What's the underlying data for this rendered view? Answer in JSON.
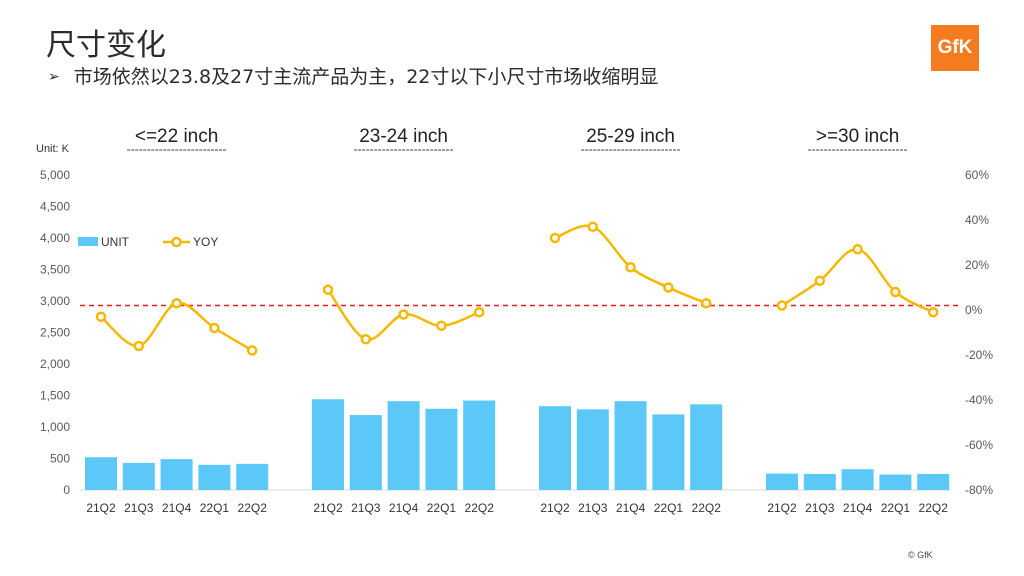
{
  "slide": {
    "title": "尺寸变化",
    "bullet_symbol": "➢",
    "subtitle": "市场依然以23.8及27寸主流产品为主，22寸以下小尺寸市场收缩明显",
    "logo_text": "GfK",
    "copyright": "© GfK"
  },
  "colors": {
    "bar": "#5bc8f8",
    "line": "#f5b800",
    "reference_line": "#e02020",
    "logo": "#f47b20"
  },
  "chart_data": {
    "type": "bar",
    "unit_label": "Unit: K",
    "group_divider": "-------------------------",
    "groups": [
      {
        "name": "<=22 inch",
        "categories": [
          "21Q2",
          "21Q3",
          "21Q4",
          "22Q1",
          "22Q2"
        ],
        "unit": [
          520,
          430,
          490,
          400,
          415
        ],
        "yoy": [
          -3,
          -16,
          3,
          -8,
          -18
        ]
      },
      {
        "name": "23-24 inch",
        "categories": [
          "21Q2",
          "21Q3",
          "21Q4",
          "22Q1",
          "22Q2"
        ],
        "unit": [
          1440,
          1190,
          1410,
          1290,
          1420
        ],
        "yoy": [
          9,
          -13,
          -2,
          -7,
          -1
        ]
      },
      {
        "name": "25-29 inch",
        "categories": [
          "21Q2",
          "21Q3",
          "21Q4",
          "22Q1",
          "22Q2"
        ],
        "unit": [
          1330,
          1280,
          1410,
          1200,
          1360
        ],
        "yoy": [
          32,
          37,
          19,
          10,
          3
        ]
      },
      {
        "name": ">=30 inch",
        "categories": [
          "21Q2",
          "21Q3",
          "21Q4",
          "22Q1",
          "22Q2"
        ],
        "unit": [
          260,
          255,
          330,
          245,
          255
        ],
        "yoy": [
          2,
          13,
          27,
          8,
          -1
        ]
      }
    ],
    "series": [
      {
        "name": "UNIT",
        "type": "bar",
        "axis": "left"
      },
      {
        "name": "YOY",
        "type": "line",
        "axis": "right"
      }
    ],
    "y_left": {
      "min": 0,
      "max": 5000,
      "ticks": [
        "5,000",
        "4,500",
        "4,000",
        "3,500",
        "3,000",
        "2,500",
        "2,000",
        "1,500",
        "1,000",
        "500",
        "0"
      ]
    },
    "y_right": {
      "min": -80,
      "max": 60,
      "ticks": [
        "60%",
        "40%",
        "20%",
        "0%",
        "-20%",
        "-40%",
        "-60%",
        "-80%"
      ]
    },
    "reference_line_value": 2,
    "legend_position": "top-left",
    "grid": false
  }
}
